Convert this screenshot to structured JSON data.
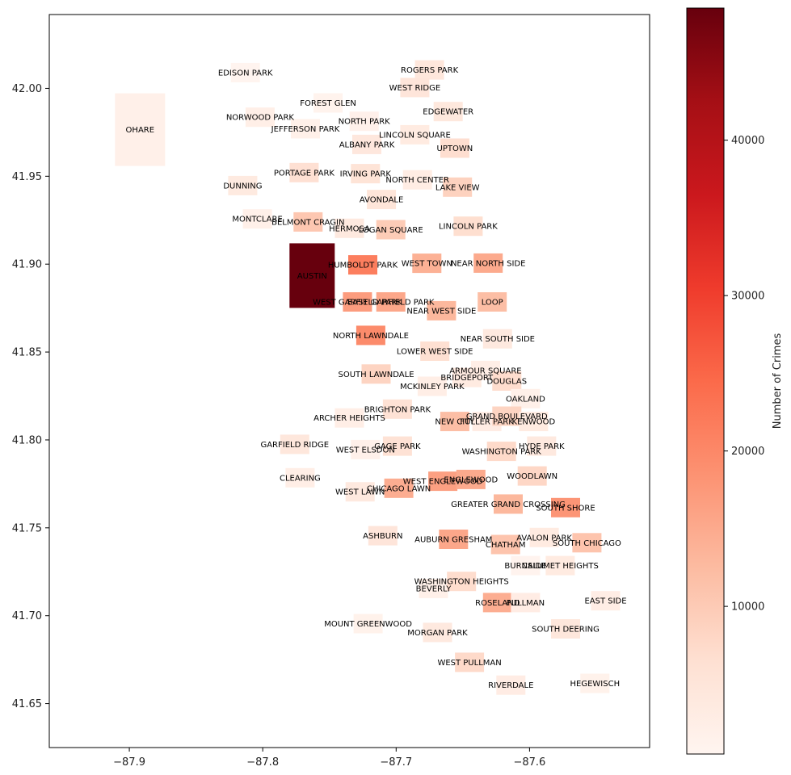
{
  "chart_data": {
    "type": "choropleth",
    "title": "",
    "xlabel": "",
    "ylabel": "",
    "xlim": [
      -87.96,
      -87.51
    ],
    "ylim": [
      41.625,
      42.042
    ],
    "xticks": [
      -87.9,
      -87.8,
      -87.7,
      -87.6
    ],
    "xtick_labels": [
      "−87.9",
      "−87.8",
      "−87.7",
      "−87.6"
    ],
    "yticks": [
      41.65,
      41.7,
      41.75,
      41.8,
      41.85,
      41.9,
      41.95,
      42.0
    ],
    "ytick_labels": [
      "41.65",
      "41.70",
      "41.75",
      "41.80",
      "41.85",
      "41.90",
      "41.95",
      "42.00"
    ],
    "colorbar": {
      "label": "Number of Crimes",
      "min": 500,
      "max": 48500,
      "ticks": [
        10000,
        20000,
        30000,
        40000
      ],
      "tick_labels": [
        "10000",
        "20000",
        "30000",
        "40000"
      ],
      "colormap": "Reds",
      "color_stops": [
        "#fff5f0",
        "#fee0d2",
        "#fcbba1",
        "#fc9272",
        "#fb6a4a",
        "#ef3b2c",
        "#cb181d",
        "#a50f15",
        "#67000d"
      ]
    },
    "areas": [
      {
        "name": "ROGERS PARK",
        "lon": -87.675,
        "lat": 42.0105,
        "value": 4500
      },
      {
        "name": "WEST RIDGE",
        "lon": -87.686,
        "lat": 42.0005,
        "value": 5000
      },
      {
        "name": "EDGEWATER",
        "lon": -87.661,
        "lat": 41.9868,
        "value": 4300
      },
      {
        "name": "UPTOWN",
        "lon": -87.656,
        "lat": 41.966,
        "value": 6800
      },
      {
        "name": "LINCOLN SQUARE",
        "lon": -87.686,
        "lat": 41.9736,
        "value": 3500
      },
      {
        "name": "NORTH CENTER",
        "lon": -87.684,
        "lat": 41.948,
        "value": 2900
      },
      {
        "name": "LAKE VIEW",
        "lon": -87.654,
        "lat": 41.9438,
        "value": 8800
      },
      {
        "name": "LINCOLN PARK",
        "lon": -87.646,
        "lat": 41.9216,
        "value": 6700
      },
      {
        "name": "NEAR NORTH SIDE",
        "lon": -87.631,
        "lat": 41.9006,
        "value": 15000
      },
      {
        "name": "EDISON PARK",
        "lon": -87.813,
        "lat": 42.009,
        "value": 800
      },
      {
        "name": "NORWOOD PARK",
        "lon": -87.802,
        "lat": 41.9836,
        "value": 2300
      },
      {
        "name": "JEFFERSON PARK",
        "lon": -87.768,
        "lat": 41.977,
        "value": 1900
      },
      {
        "name": "FOREST GLEN",
        "lon": -87.751,
        "lat": 41.9917,
        "value": 1200
      },
      {
        "name": "NORTH PARK",
        "lon": -87.724,
        "lat": 41.9813,
        "value": 1800
      },
      {
        "name": "ALBANY PARK",
        "lon": -87.722,
        "lat": 41.9681,
        "value": 4400
      },
      {
        "name": "PORTAGE PARK",
        "lon": -87.769,
        "lat": 41.9521,
        "value": 6400
      },
      {
        "name": "IRVING PARK",
        "lon": -87.723,
        "lat": 41.9515,
        "value": 5500
      },
      {
        "name": "DUNNING",
        "lon": -87.815,
        "lat": 41.9447,
        "value": 3700
      },
      {
        "name": "MONTCLARE",
        "lon": -87.804,
        "lat": 41.9257,
        "value": 1900
      },
      {
        "name": "BELMONT CRAGIN",
        "lon": -87.766,
        "lat": 41.924,
        "value": 10500
      },
      {
        "name": "HERMOSA",
        "lon": -87.735,
        "lat": 41.9204,
        "value": 4000
      },
      {
        "name": "AVONDALE",
        "lon": -87.711,
        "lat": 41.9368,
        "value": 5200
      },
      {
        "name": "LOGAN SQUARE",
        "lon": -87.704,
        "lat": 41.9196,
        "value": 9800
      },
      {
        "name": "HUMBOLDT PARK",
        "lon": -87.725,
        "lat": 41.8996,
        "value": 21500
      },
      {
        "name": "WEST TOWN",
        "lon": -87.677,
        "lat": 41.9005,
        "value": 14000
      },
      {
        "name": "AUSTIN",
        "lon": -87.763,
        "lat": 41.8935,
        "value": 48500
      },
      {
        "name": "WEST GARFIELD PARK",
        "lon": -87.729,
        "lat": 41.8785,
        "value": 17000
      },
      {
        "name": "EAST GARFIELD PARK",
        "lon": -87.704,
        "lat": 41.8785,
        "value": 15500
      },
      {
        "name": "NEAR WEST SIDE",
        "lon": -87.666,
        "lat": 41.8735,
        "value": 13000
      },
      {
        "name": "NORTH LAWNDALE",
        "lon": -87.719,
        "lat": 41.8595,
        "value": 19500
      },
      {
        "name": "SOUTH LAWNDALE",
        "lon": -87.715,
        "lat": 41.8375,
        "value": 8500
      },
      {
        "name": "LOWER WEST SIDE",
        "lon": -87.671,
        "lat": 41.8505,
        "value": 6500
      },
      {
        "name": "LOOP",
        "lon": -87.628,
        "lat": 41.8785,
        "value": 12000
      },
      {
        "name": "NEAR SOUTH SIDE",
        "lon": -87.624,
        "lat": 41.8575,
        "value": 4000
      },
      {
        "name": "ARMOUR SQUARE",
        "lon": -87.633,
        "lat": 41.8395,
        "value": 2500
      },
      {
        "name": "DOUGLAS",
        "lon": -87.617,
        "lat": 41.8335,
        "value": 7000
      },
      {
        "name": "OAKLAND",
        "lon": -87.603,
        "lat": 41.8235,
        "value": 2000
      },
      {
        "name": "FULLER PARK",
        "lon": -87.632,
        "lat": 41.8105,
        "value": 3000
      },
      {
        "name": "GRAND BOULEVARD",
        "lon": -87.617,
        "lat": 41.8135,
        "value": 8500
      },
      {
        "name": "KENWOOD",
        "lon": -87.597,
        "lat": 41.8105,
        "value": 3500
      },
      {
        "name": "WASHINGTON PARK",
        "lon": -87.621,
        "lat": 41.7935,
        "value": 7500
      },
      {
        "name": "HYDE PARK",
        "lon": -87.591,
        "lat": 41.7965,
        "value": 4000
      },
      {
        "name": "WOODLAWN",
        "lon": -87.598,
        "lat": 41.7795,
        "value": 8000
      },
      {
        "name": "SOUTH SHORE",
        "lon": -87.573,
        "lat": 41.7615,
        "value": 18000
      },
      {
        "name": "BRIDGEPORT",
        "lon": -87.647,
        "lat": 41.8355,
        "value": 3500
      },
      {
        "name": "GREATER GRAND CROSSING",
        "lon": -87.616,
        "lat": 41.7635,
        "value": 13000
      },
      {
        "name": "GARFIELD RIDGE",
        "lon": -87.776,
        "lat": 41.7975,
        "value": 4500
      },
      {
        "name": "ARCHER HEIGHTS",
        "lon": -87.735,
        "lat": 41.8125,
        "value": 2500
      },
      {
        "name": "BRIGHTON PARK",
        "lon": -87.699,
        "lat": 41.8175,
        "value": 6000
      },
      {
        "name": "MCKINLEY PARK",
        "lon": -87.673,
        "lat": 41.8305,
        "value": 2500
      },
      {
        "name": "BEVERLY",
        "lon": -87.672,
        "lat": 41.7155,
        "value": 2000
      },
      {
        "name": "WASHINGTON HEIGHTS",
        "lon": -87.651,
        "lat": 41.7195,
        "value": 7000
      },
      {
        "name": "MOUNT GREENWOOD",
        "lon": -87.721,
        "lat": 41.6955,
        "value": 1500
      },
      {
        "name": "MORGAN PARK",
        "lon": -87.669,
        "lat": 41.6905,
        "value": 4000
      },
      {
        "name": "OHARE",
        "lon": -87.892,
        "lat": 41.9765,
        "value": 2000
      },
      {
        "name": "EDGEWATER",
        "lon": -87.661,
        "lat": 41.9868,
        "value": 4300
      },
      {
        "name": "NEW CITY",
        "lon": -87.656,
        "lat": 41.8105,
        "value": 12000
      },
      {
        "name": "WEST ELSDON",
        "lon": -87.723,
        "lat": 41.7945,
        "value": 1800
      },
      {
        "name": "GAGE PARK",
        "lon": -87.699,
        "lat": 41.7965,
        "value": 6000
      },
      {
        "name": "CLEARING",
        "lon": -87.772,
        "lat": 41.7785,
        "value": 2500
      },
      {
        "name": "WEST LAWN",
        "lon": -87.727,
        "lat": 41.7705,
        "value": 4000
      },
      {
        "name": "CHICAGO LAWN",
        "lon": -87.698,
        "lat": 41.7725,
        "value": 14500
      },
      {
        "name": "WEST ENGLEWOOD",
        "lon": -87.665,
        "lat": 41.7765,
        "value": 16500
      },
      {
        "name": "ENGLEWOOD",
        "lon": -87.644,
        "lat": 41.7775,
        "value": 15000
      },
      {
        "name": "ASHBURN",
        "lon": -87.71,
        "lat": 41.7455,
        "value": 5000
      },
      {
        "name": "AUBURN GRESHAM",
        "lon": -87.657,
        "lat": 41.7435,
        "value": 15500
      },
      {
        "name": "CHATHAM",
        "lon": -87.618,
        "lat": 41.7405,
        "value": 11000
      },
      {
        "name": "AVALON PARK",
        "lon": -87.589,
        "lat": 41.7445,
        "value": 3500
      },
      {
        "name": "SOUTH CHICAGO",
        "lon": -87.557,
        "lat": 41.7415,
        "value": 11000
      },
      {
        "name": "BURNSIDE",
        "lon": -87.603,
        "lat": 41.7285,
        "value": 1000
      },
      {
        "name": "CALUMET HEIGHTS",
        "lon": -87.577,
        "lat": 41.7285,
        "value": 3500
      },
      {
        "name": "ROSELAND",
        "lon": -87.624,
        "lat": 41.7075,
        "value": 14500
      },
      {
        "name": "PULLMAN",
        "lon": -87.603,
        "lat": 41.7075,
        "value": 3000
      },
      {
        "name": "SOUTH DEERING",
        "lon": -87.573,
        "lat": 41.6925,
        "value": 4500
      },
      {
        "name": "EAST SIDE",
        "lon": -87.543,
        "lat": 41.7085,
        "value": 2800
      },
      {
        "name": "WEST PULLMAN",
        "lon": -87.645,
        "lat": 41.6735,
        "value": 7500
      },
      {
        "name": "RIVERDALE",
        "lon": -87.614,
        "lat": 41.6605,
        "value": 3000
      },
      {
        "name": "HEGEWISCH",
        "lon": -87.551,
        "lat": 41.6615,
        "value": 1500
      }
    ]
  }
}
